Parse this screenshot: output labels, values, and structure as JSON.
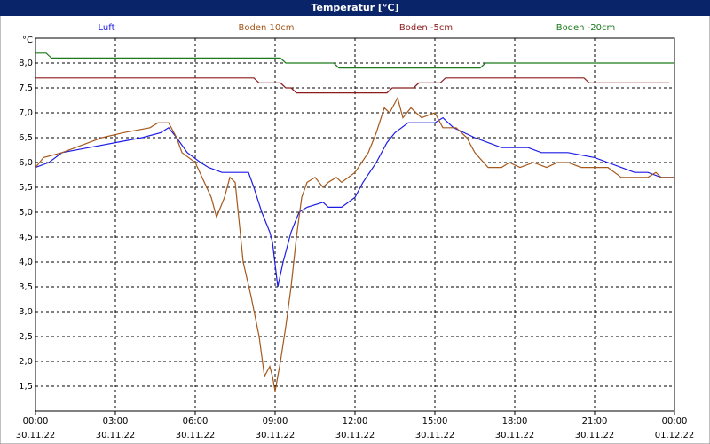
{
  "chart_data": {
    "type": "line",
    "title": "Temperatur [°C]",
    "y_unit": "°C",
    "xlim": [
      0,
      24
    ],
    "ylim": [
      1.0,
      8.5
    ],
    "grid": true,
    "legend": "top",
    "xticks": [
      {
        "value": 0,
        "label": "00:00"
      },
      {
        "value": 3,
        "label": "03:00"
      },
      {
        "value": 6,
        "label": "06:00"
      },
      {
        "value": 9,
        "label": "09:00"
      },
      {
        "value": 12,
        "label": "12:00"
      },
      {
        "value": 15,
        "label": "15:00"
      },
      {
        "value": 18,
        "label": "18:00"
      },
      {
        "value": 21,
        "label": "21:00"
      },
      {
        "value": 24,
        "label": "00:00"
      }
    ],
    "xtick_dates": [
      "30.11.22",
      "30.11.22",
      "30.11.22",
      "30.11.22",
      "30.11.22",
      "30.11.22",
      "30.11.22",
      "30.11.22",
      "01.12.22"
    ],
    "yticks": [
      {
        "value": 1.5,
        "label": "1,5"
      },
      {
        "value": 2,
        "label": "2,0"
      },
      {
        "value": 2.5,
        "label": "2,5"
      },
      {
        "value": 3,
        "label": "3,0"
      },
      {
        "value": 3.5,
        "label": "3,5"
      },
      {
        "value": 4,
        "label": "4,0"
      },
      {
        "value": 4.5,
        "label": "4,5"
      },
      {
        "value": 5,
        "label": "5,0"
      },
      {
        "value": 5.5,
        "label": "5,5"
      },
      {
        "value": 6,
        "label": "6,0"
      },
      {
        "value": 6.5,
        "label": "6,5"
      },
      {
        "value": 7,
        "label": "7,0"
      },
      {
        "value": 7.5,
        "label": "7,5"
      },
      {
        "value": 8,
        "label": "8,0"
      }
    ],
    "series": [
      {
        "name": "Luft",
        "color": "#1c1ce6",
        "x": [
          0,
          0.5,
          1,
          2,
          3,
          4,
          4.7,
          5,
          5.3,
          5.7,
          6.2,
          6.5,
          7,
          8,
          8.2,
          8.5,
          8.8,
          8.9,
          9.1,
          9.3,
          9.6,
          9.9,
          10.2,
          10.8,
          11,
          11.5,
          12,
          12.3,
          12.8,
          13.2,
          13.5,
          14,
          15,
          15.3,
          15.7,
          16.5,
          17,
          17.5,
          18.5,
          19,
          20,
          21,
          21.5,
          22,
          22.5,
          23,
          23.5,
          24
        ],
        "values": [
          5.9,
          6.0,
          6.2,
          6.3,
          6.4,
          6.5,
          6.6,
          6.7,
          6.5,
          6.2,
          6.0,
          5.9,
          5.8,
          5.8,
          5.5,
          5.0,
          4.6,
          4.4,
          3.5,
          4.0,
          4.6,
          5.0,
          5.1,
          5.2,
          5.1,
          5.1,
          5.3,
          5.6,
          6.0,
          6.4,
          6.6,
          6.8,
          6.8,
          6.9,
          6.7,
          6.5,
          6.4,
          6.3,
          6.3,
          6.2,
          6.2,
          6.1,
          6.0,
          5.9,
          5.8,
          5.8,
          5.7,
          5.7
        ]
      },
      {
        "name": "Boden 10cm",
        "color": "#a5581c",
        "x": [
          0,
          0.3,
          1,
          2,
          2.5,
          3.3,
          4.3,
          4.6,
          5,
          5.3,
          5.5,
          6,
          6.6,
          6.8,
          7.1,
          7.3,
          7.5,
          7.8,
          8.1,
          8.4,
          8.6,
          8.8,
          8.9,
          9.0,
          9.2,
          9.4,
          9.6,
          9.8,
          10,
          10.2,
          10.5,
          10.8,
          11,
          11.3,
          11.5,
          12,
          12.5,
          12.8,
          13.1,
          13.3,
          13.6,
          13.8,
          14.1,
          14.5,
          15,
          15.3,
          15.8,
          16.2,
          16.5,
          17,
          17.5,
          17.8,
          18.2,
          18.7,
          19.2,
          19.6,
          20,
          20.5,
          21.5,
          22,
          23,
          23.3,
          23.5,
          24
        ],
        "values": [
          5.9,
          6.1,
          6.2,
          6.4,
          6.5,
          6.6,
          6.7,
          6.8,
          6.8,
          6.5,
          6.2,
          6.0,
          5.3,
          4.9,
          5.3,
          5.7,
          5.6,
          4.0,
          3.3,
          2.5,
          1.7,
          1.9,
          1.7,
          1.4,
          2.0,
          2.7,
          3.5,
          4.5,
          5.3,
          5.6,
          5.7,
          5.5,
          5.6,
          5.7,
          5.6,
          5.8,
          6.2,
          6.6,
          7.1,
          7.0,
          7.3,
          6.9,
          7.1,
          6.9,
          7.0,
          6.7,
          6.7,
          6.5,
          6.2,
          5.9,
          5.9,
          6.0,
          5.9,
          6.0,
          5.9,
          6.0,
          6.0,
          5.9,
          5.9,
          5.7,
          5.7,
          5.8,
          5.7,
          5.7
        ]
      },
      {
        "name": "Boden -5cm",
        "color": "#8c1c1c",
        "x": [
          0,
          8.2,
          8.4,
          9.2,
          9.4,
          9.6,
          9.8,
          13.2,
          13.4,
          14.2,
          14.4,
          15.2,
          15.4,
          20.6,
          20.8,
          23.8
        ],
        "values": [
          7.7,
          7.7,
          7.6,
          7.6,
          7.5,
          7.5,
          7.4,
          7.4,
          7.5,
          7.5,
          7.6,
          7.6,
          7.7,
          7.7,
          7.6,
          7.6
        ]
      },
      {
        "name": "Boden -20cm",
        "color": "#1c7a1c",
        "x": [
          0,
          0.4,
          0.6,
          9.2,
          9.4,
          11.2,
          11.4,
          16.7,
          16.9,
          24
        ],
        "values": [
          8.2,
          8.2,
          8.1,
          8.1,
          8.0,
          8.0,
          7.9,
          7.9,
          8.0,
          8.0
        ]
      }
    ]
  }
}
